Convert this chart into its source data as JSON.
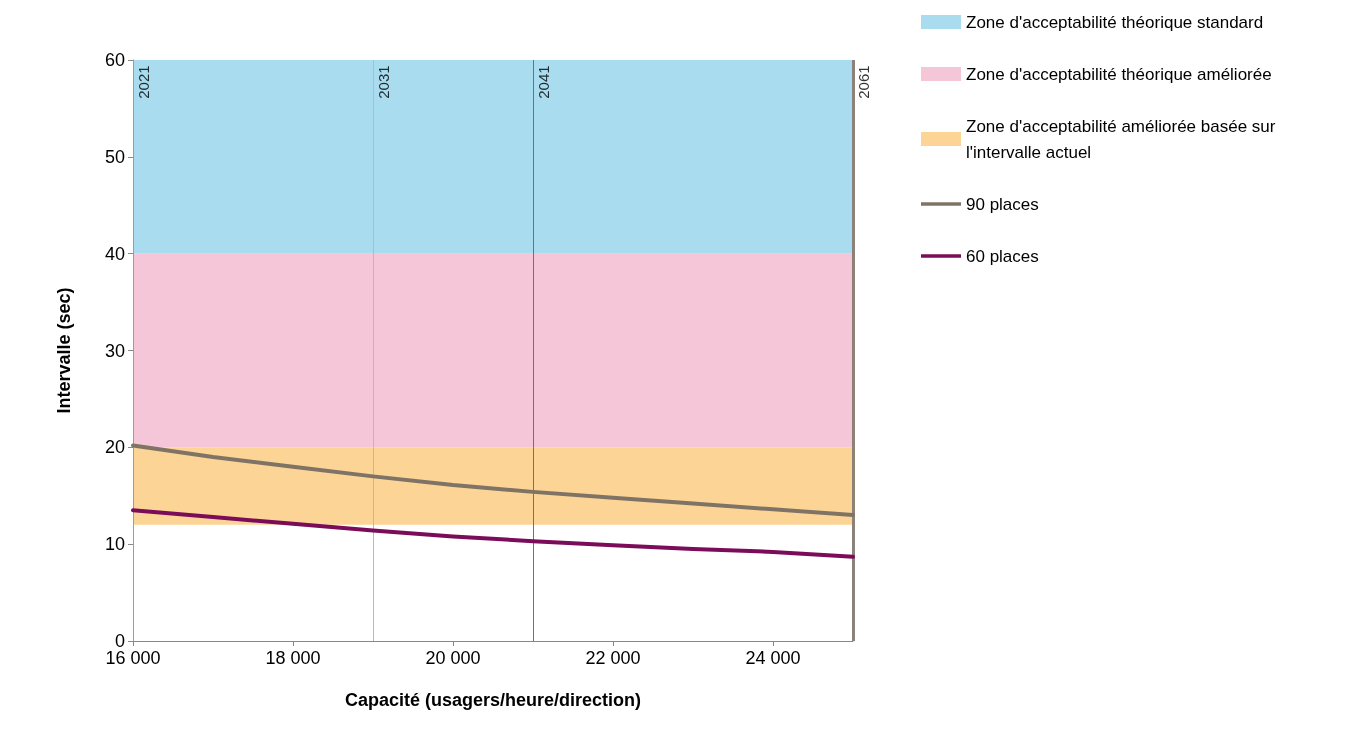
{
  "chart_data": {
    "type": "line",
    "xlabel": "Capacité (usagers/heure/direction)",
    "ylabel": "Intervalle (sec)",
    "x": [
      16000,
      17000,
      18000,
      19000,
      20000,
      21000,
      22000,
      23000,
      24000,
      25000
    ],
    "series": [
      {
        "name": "90 places",
        "color": "#7f7366",
        "values": [
          20.2,
          19.0,
          18.0,
          17.0,
          16.1,
          15.4,
          14.8,
          14.2,
          13.6,
          13.0
        ]
      },
      {
        "name": "60 places",
        "color": "#7b0c5a",
        "values": [
          13.5,
          12.8,
          12.1,
          11.4,
          10.8,
          10.3,
          9.9,
          9.5,
          9.2,
          8.7
        ]
      }
    ],
    "bands": [
      {
        "axis": "y",
        "from": 40,
        "to": 60,
        "label": "Zone d'acceptabilité théorique standard",
        "color": "#a8dcee"
      },
      {
        "axis": "y",
        "from": 20,
        "to": 40,
        "label": "Zone d'acceptabilité théorique améliorée",
        "color": "#f4c6d8"
      },
      {
        "axis": "y",
        "from": 12,
        "to": 20,
        "label": "Zone d'acceptabilité améliorée basée sur l'intervalle actuel",
        "color": "#fcd596"
      }
    ],
    "ref_lines": [
      {
        "axis": "x",
        "value": 16000,
        "color": "#66cc33"
      },
      {
        "axis": "x",
        "value": 19000,
        "color": "#f9b233"
      },
      {
        "axis": "x",
        "value": 21000,
        "color": "#cc33cc"
      },
      {
        "axis": "x",
        "value": 25000,
        "color": "#8c8279"
      }
    ],
    "annotations": [
      {
        "text": "2021",
        "x": 16000,
        "y": 56
      },
      {
        "text": "2031",
        "x": 19000,
        "y": 56
      },
      {
        "text": "2041",
        "x": 21000,
        "y": 56
      },
      {
        "text": "2061",
        "x": 25000,
        "y": 56
      }
    ],
    "xlim": [
      16000,
      25000
    ],
    "xticks": [
      {
        "value": 16000,
        "label": "16 000"
      },
      {
        "value": 18000,
        "label": "18 000"
      },
      {
        "value": 20000,
        "label": "20 000"
      },
      {
        "value": 22000,
        "label": "22 000"
      },
      {
        "value": 24000,
        "label": "24 000"
      }
    ],
    "ylim": [
      0,
      60
    ],
    "yticks": [
      0,
      10,
      20,
      30,
      40,
      50,
      60
    ],
    "grid": false,
    "legend": "right",
    "marker": "none",
    "line_style": "solid"
  }
}
